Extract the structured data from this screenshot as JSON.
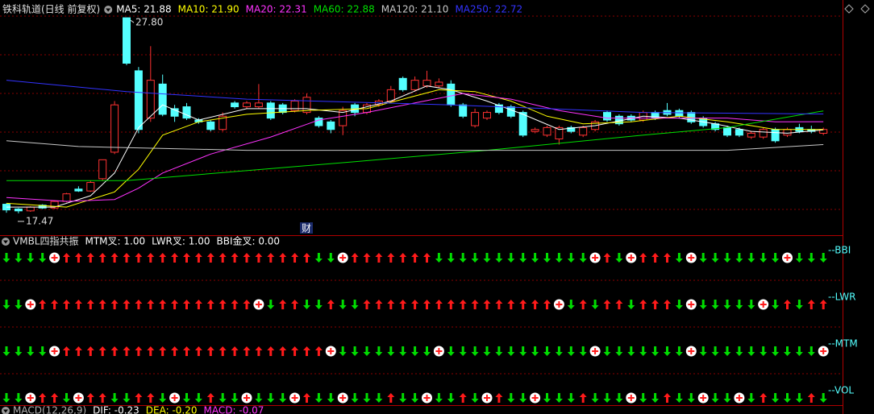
{
  "chart_data": [
    {
      "type": "candlestick",
      "title": "铁科轨道(日线 前复权)",
      "title_color": "#e0e0e0",
      "ylim": [
        16.4,
        28.74
      ],
      "up_color": "#ff3232",
      "down_color": "#54ffff",
      "open": [
        17.95,
        17.7,
        17.6,
        17.9,
        17.75,
        18.1,
        18.75,
        18.65,
        19.3,
        20.7,
        27.8,
        25.0,
        22.5,
        24.3,
        23.0,
        23.1,
        22.4,
        22.3,
        21.9,
        23.3,
        23.1,
        23.1,
        23.3,
        23.2,
        22.9,
        22.8,
        22.5,
        22.3,
        22.1,
        23.2,
        22.8,
        23.2,
        23.4,
        24.6,
        24.0,
        24.2,
        24.2,
        24.3,
        23.2,
        22.1,
        22.5,
        23.2,
        23.1,
        22.8,
        21.8,
        21.6,
        21.4,
        22.0,
        21.6,
        21.9,
        22.8,
        22.6,
        22.6,
        22.4,
        22.8,
        22.9,
        22.9,
        22.8,
        22.5,
        22.2,
        22.0,
        21.9,
        21.5,
        21.5,
        21.9,
        21.6,
        22.0,
        21.9,
        21.7
      ],
      "high": [
        18.0,
        17.75,
        17.85,
        17.95,
        18.15,
        18.55,
        18.9,
        19.2,
        20.3,
        23.4,
        27.8,
        25.2,
        26.3,
        24.8,
        23.2,
        23.3,
        22.5,
        22.4,
        22.8,
        23.4,
        23.4,
        24.3,
        23.4,
        23.3,
        23.5,
        23.8,
        22.6,
        22.4,
        23.1,
        23.3,
        23.3,
        23.5,
        24.2,
        24.7,
        24.7,
        25.0,
        24.6,
        24.5,
        23.3,
        23.0,
        22.9,
        23.3,
        23.2,
        22.9,
        22.0,
        22.1,
        22.1,
        22.1,
        22.1,
        22.4,
        22.9,
        22.7,
        22.7,
        22.9,
        22.9,
        23.3,
        23.0,
        22.9,
        22.6,
        22.3,
        22.1,
        22.0,
        21.8,
        22.0,
        22.0,
        22.0,
        22.2,
        22.1,
        22.0
      ],
      "low": [
        17.5,
        17.47,
        17.55,
        17.7,
        17.7,
        18.05,
        18.6,
        18.6,
        19.2,
        20.6,
        25.3,
        21.7,
        22.3,
        22.6,
        22.3,
        22.4,
        22.2,
        21.8,
        21.8,
        23.0,
        23.0,
        23.0,
        22.4,
        22.7,
        22.8,
        22.7,
        22.0,
        21.7,
        21.6,
        22.6,
        22.7,
        23.1,
        23.3,
        23.9,
        23.9,
        24.1,
        24.1,
        23.1,
        22.5,
        22.0,
        22.4,
        22.7,
        22.5,
        21.5,
        21.7,
        21.5,
        21.1,
        21.7,
        21.5,
        21.8,
        22.3,
        22.1,
        22.3,
        22.3,
        22.4,
        22.6,
        22.5,
        22.2,
        22.0,
        21.8,
        21.5,
        21.5,
        21.4,
        21.4,
        21.2,
        21.5,
        21.7,
        21.7,
        21.6
      ],
      "close": [
        17.65,
        17.6,
        17.8,
        17.75,
        18.1,
        18.5,
        18.65,
        19.1,
        20.3,
        23.2,
        25.4,
        21.9,
        24.5,
        22.7,
        22.6,
        22.5,
        22.3,
        21.9,
        22.6,
        23.1,
        23.3,
        23.3,
        22.5,
        22.8,
        23.4,
        23.6,
        22.1,
        21.9,
        22.9,
        22.8,
        23.2,
        23.4,
        24.0,
        24.0,
        24.5,
        24.5,
        24.4,
        23.2,
        22.6,
        22.8,
        22.8,
        22.8,
        22.6,
        21.6,
        21.9,
        22.0,
        22.0,
        21.8,
        22.0,
        22.3,
        22.4,
        22.2,
        22.4,
        22.8,
        22.5,
        22.7,
        22.6,
        22.3,
        22.1,
        21.9,
        21.6,
        21.6,
        21.7,
        21.9,
        21.3,
        21.9,
        21.8,
        21.8,
        21.9
      ],
      "series": [
        {
          "label": "MA5: 21.88",
          "color": "#ffffff",
          "x": [
            0,
            4,
            7,
            9,
            11,
            13,
            16,
            20,
            25,
            28,
            32,
            35,
            37,
            40,
            43,
            46,
            49,
            53,
            56,
            59,
            62,
            65,
            68
          ],
          "values": [
            17.8,
            17.8,
            18.4,
            19.6,
            22.0,
            23.2,
            22.4,
            23.0,
            23.0,
            22.8,
            23.4,
            24.2,
            24.0,
            23.4,
            22.7,
            21.9,
            22.1,
            22.6,
            22.5,
            22.2,
            21.8,
            21.7,
            21.88
          ]
        },
        {
          "label": "MA10: 21.90",
          "color": "#ffff00",
          "x": [
            0,
            5,
            9,
            11,
            13,
            16,
            20,
            25,
            30,
            33,
            36,
            39,
            42,
            45,
            48,
            52,
            56,
            60,
            64,
            68
          ],
          "values": [
            18.0,
            17.8,
            18.6,
            19.8,
            21.6,
            22.3,
            22.7,
            22.9,
            23.0,
            23.5,
            24.0,
            23.9,
            23.4,
            22.6,
            22.2,
            22.3,
            22.6,
            22.3,
            21.9,
            21.9
          ]
        },
        {
          "label": "MA20: 22.31",
          "color": "#ff33ff",
          "x": [
            0,
            5,
            9,
            11,
            13,
            17,
            22,
            26,
            30,
            34,
            38,
            42,
            46,
            50,
            55,
            60,
            64,
            68
          ],
          "values": [
            18.3,
            18.1,
            18.2,
            18.8,
            19.6,
            20.6,
            21.5,
            22.4,
            22.8,
            23.3,
            23.8,
            23.5,
            22.9,
            22.5,
            22.5,
            22.5,
            22.3,
            22.31
          ]
        },
        {
          "label": "MA60: 22.88",
          "color": "#00e000",
          "x": [
            0,
            10,
            29,
            40,
            53,
            60,
            68
          ],
          "values": [
            19.2,
            19.2,
            20.2,
            20.8,
            21.6,
            22.0,
            22.88
          ]
        },
        {
          "label": "MA120: 21.10",
          "color": "#c8c8c8",
          "x": [
            0,
            6,
            20,
            40,
            60,
            68
          ],
          "values": [
            21.3,
            21.0,
            20.8,
            20.8,
            20.8,
            21.1
          ]
        },
        {
          "label": "MA250: 22.72",
          "color": "#3333ff",
          "x": [
            0,
            10,
            20,
            37,
            53,
            68
          ],
          "values": [
            24.5,
            23.9,
            23.5,
            23.2,
            22.8,
            22.72
          ]
        }
      ],
      "annotations": [
        {
          "value": 27.8,
          "label": "27.80"
        },
        {
          "value": 17.47,
          "label": "17.47"
        }
      ],
      "event_marker": "财"
    },
    {
      "type": "signal",
      "title": "VMBL四指共振",
      "title_color": "#e0e0e0",
      "legend": [
        "MTM叉: 1.00",
        "LWR叉: 1.00",
        "BBI金叉: 0.00"
      ],
      "legend_color": "#ffffff",
      "up_color": "#ff1a1a",
      "down_color": "#00dd00",
      "cross_color": "#ffffff",
      "label_color": "#54ffff",
      "rows": [
        {
          "name": "--BBI",
          "signals": [
            -1,
            -1,
            -1,
            -1,
            0,
            1,
            1,
            1,
            1,
            1,
            1,
            1,
            1,
            1,
            1,
            1,
            1,
            1,
            1,
            1,
            1,
            1,
            1,
            1,
            1,
            1,
            -1,
            -1,
            0,
            1,
            1,
            1,
            1,
            1,
            1,
            1,
            -1,
            -1,
            -1,
            -1,
            -1,
            -1,
            -1,
            -1,
            -1,
            -1,
            -1,
            -1,
            -1,
            0,
            1,
            -1,
            0,
            1,
            1,
            1,
            -1,
            0,
            -1,
            -1,
            -1,
            -1,
            -1,
            -1,
            -1,
            0,
            -1,
            -1,
            -1
          ]
        },
        {
          "name": "--LWR",
          "signals": [
            -1,
            -1,
            0,
            1,
            1,
            1,
            1,
            1,
            1,
            1,
            1,
            1,
            1,
            1,
            1,
            1,
            1,
            1,
            1,
            1,
            1,
            0,
            -1,
            1,
            1,
            -1,
            -1,
            1,
            -1,
            -1,
            1,
            1,
            1,
            1,
            1,
            1,
            1,
            1,
            1,
            1,
            1,
            1,
            1,
            1,
            1,
            1,
            0,
            -1,
            1,
            -1,
            1,
            1,
            -1,
            1,
            1,
            1,
            -1,
            0,
            -1,
            -1,
            -1,
            -1,
            -1,
            0,
            -1,
            1,
            -1,
            1,
            1
          ]
        },
        {
          "name": "--MTM",
          "signals": [
            -1,
            -1,
            -1,
            -1,
            0,
            1,
            1,
            1,
            1,
            1,
            1,
            1,
            1,
            1,
            1,
            1,
            1,
            1,
            1,
            1,
            1,
            1,
            1,
            1,
            1,
            1,
            1,
            0,
            -1,
            -1,
            -1,
            -1,
            -1,
            -1,
            -1,
            -1,
            0,
            -1,
            -1,
            -1,
            -1,
            -1,
            -1,
            -1,
            -1,
            -1,
            -1,
            -1,
            -1,
            0,
            -1,
            -1,
            -1,
            -1,
            -1,
            -1,
            -1,
            0,
            -1,
            -1,
            -1,
            -1,
            -1,
            -1,
            -1,
            -1,
            -1,
            -1,
            0
          ]
        },
        {
          "name": "--VOL",
          "signals": [
            -1,
            -1,
            0,
            1,
            1,
            -1,
            0,
            1,
            1,
            -1,
            -1,
            1,
            1,
            -1,
            0,
            -1,
            -1,
            1,
            -1,
            -1,
            0,
            -1,
            -1,
            -1,
            0,
            1,
            -1,
            -1,
            0,
            -1,
            -1,
            -1,
            1,
            -1,
            -1,
            0,
            -1,
            -1,
            1,
            -1,
            0,
            1,
            -1,
            -1,
            0,
            -1,
            -1,
            -1,
            1,
            -1,
            -1,
            -1,
            0,
            -1,
            -1,
            1,
            -1,
            -1,
            0,
            -1,
            -1,
            0,
            -1,
            1,
            -1,
            -1,
            -1,
            1,
            -1
          ]
        }
      ]
    },
    {
      "type": "macd",
      "title": "MACD(12,26,9)",
      "title_color": "#b0b0b0",
      "legend": [
        {
          "label": "DIF: -0.23",
          "color": "#ffffff"
        },
        {
          "label": "DEA: -0.20",
          "color": "#ffff00"
        },
        {
          "label": "MACD: -0.07",
          "color": "#ff33ff"
        }
      ]
    }
  ]
}
